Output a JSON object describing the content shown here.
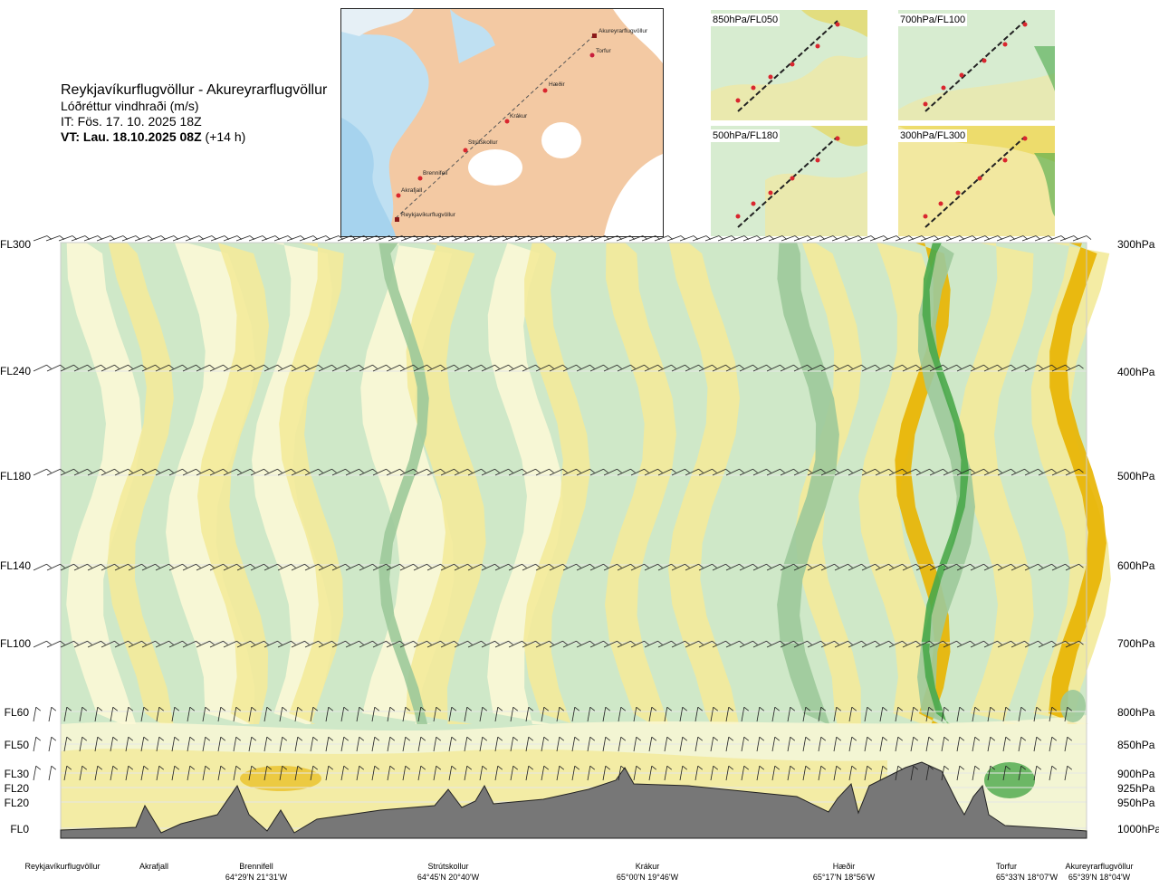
{
  "header": {
    "route": "Reykjavíkurflugvöllur - Akureyrarflugvöllur",
    "parameter": "Lóðréttur vindhraði (m/s)",
    "issue_time": "IT: Fös. 17. 10. 2025 18Z",
    "valid_time_bold": "VT: Lau. 18.10.2025 08Z",
    "valid_time_suffix": "(+14 h)"
  },
  "route_map": {
    "waypoints": [
      "Akureyrarflugvöllur",
      "Torfur",
      "Hæðir",
      "Krákur",
      "Strútskollur",
      "Brennifell",
      "Akrafjall",
      "Reykjavíkurflugvöllur"
    ]
  },
  "level_maps": [
    {
      "label": "850hPa/FL050"
    },
    {
      "label": "700hPa/FL100"
    },
    {
      "label": "500hPa/FL180"
    },
    {
      "label": "300hPa/FL300"
    }
  ],
  "chart_data": {
    "type": "heatmap",
    "title": "Lóðréttur vindhraði (m/s)",
    "x_stations": [
      {
        "name": "Reykjavíkurflugvöllur",
        "coord": ""
      },
      {
        "name": "Akrafjall",
        "coord": ""
      },
      {
        "name": "Brennifell",
        "coord": "64°29'N 21°31'W"
      },
      {
        "name": "Strútskollur",
        "coord": "64°45'N 20°40'W"
      },
      {
        "name": "Krákur",
        "coord": "65°00'N 19°46'W"
      },
      {
        "name": "Hæðir",
        "coord": "65°17'N 18°56'W"
      },
      {
        "name": "Torfur",
        "coord": "65°33'N 18°07'W"
      },
      {
        "name": "Akureyrarflugvöllur",
        "coord": "65°39'N 18°04'W"
      }
    ],
    "y_left_labels": [
      "FL300",
      "FL240",
      "FL180",
      "FL140",
      "FL100",
      "FL60",
      "FL50",
      "FL30",
      "FL20",
      "FL20",
      "FL0"
    ],
    "y_right_labels": [
      "300hPa",
      "400hPa",
      "500hPa",
      "600hPa",
      "700hPa",
      "800hPa",
      "850hPa",
      "900hPa",
      "925hPa",
      "950hPa",
      "1000hPa"
    ],
    "colors": {
      "strong_up": "#e8b400",
      "up": "#f3ea9a",
      "weak": "#fbf8d6",
      "down": "#cfe8c8",
      "strong_down": "#9cc99a",
      "very_strong_down": "#4aa84a",
      "terrain": "#777777"
    }
  }
}
